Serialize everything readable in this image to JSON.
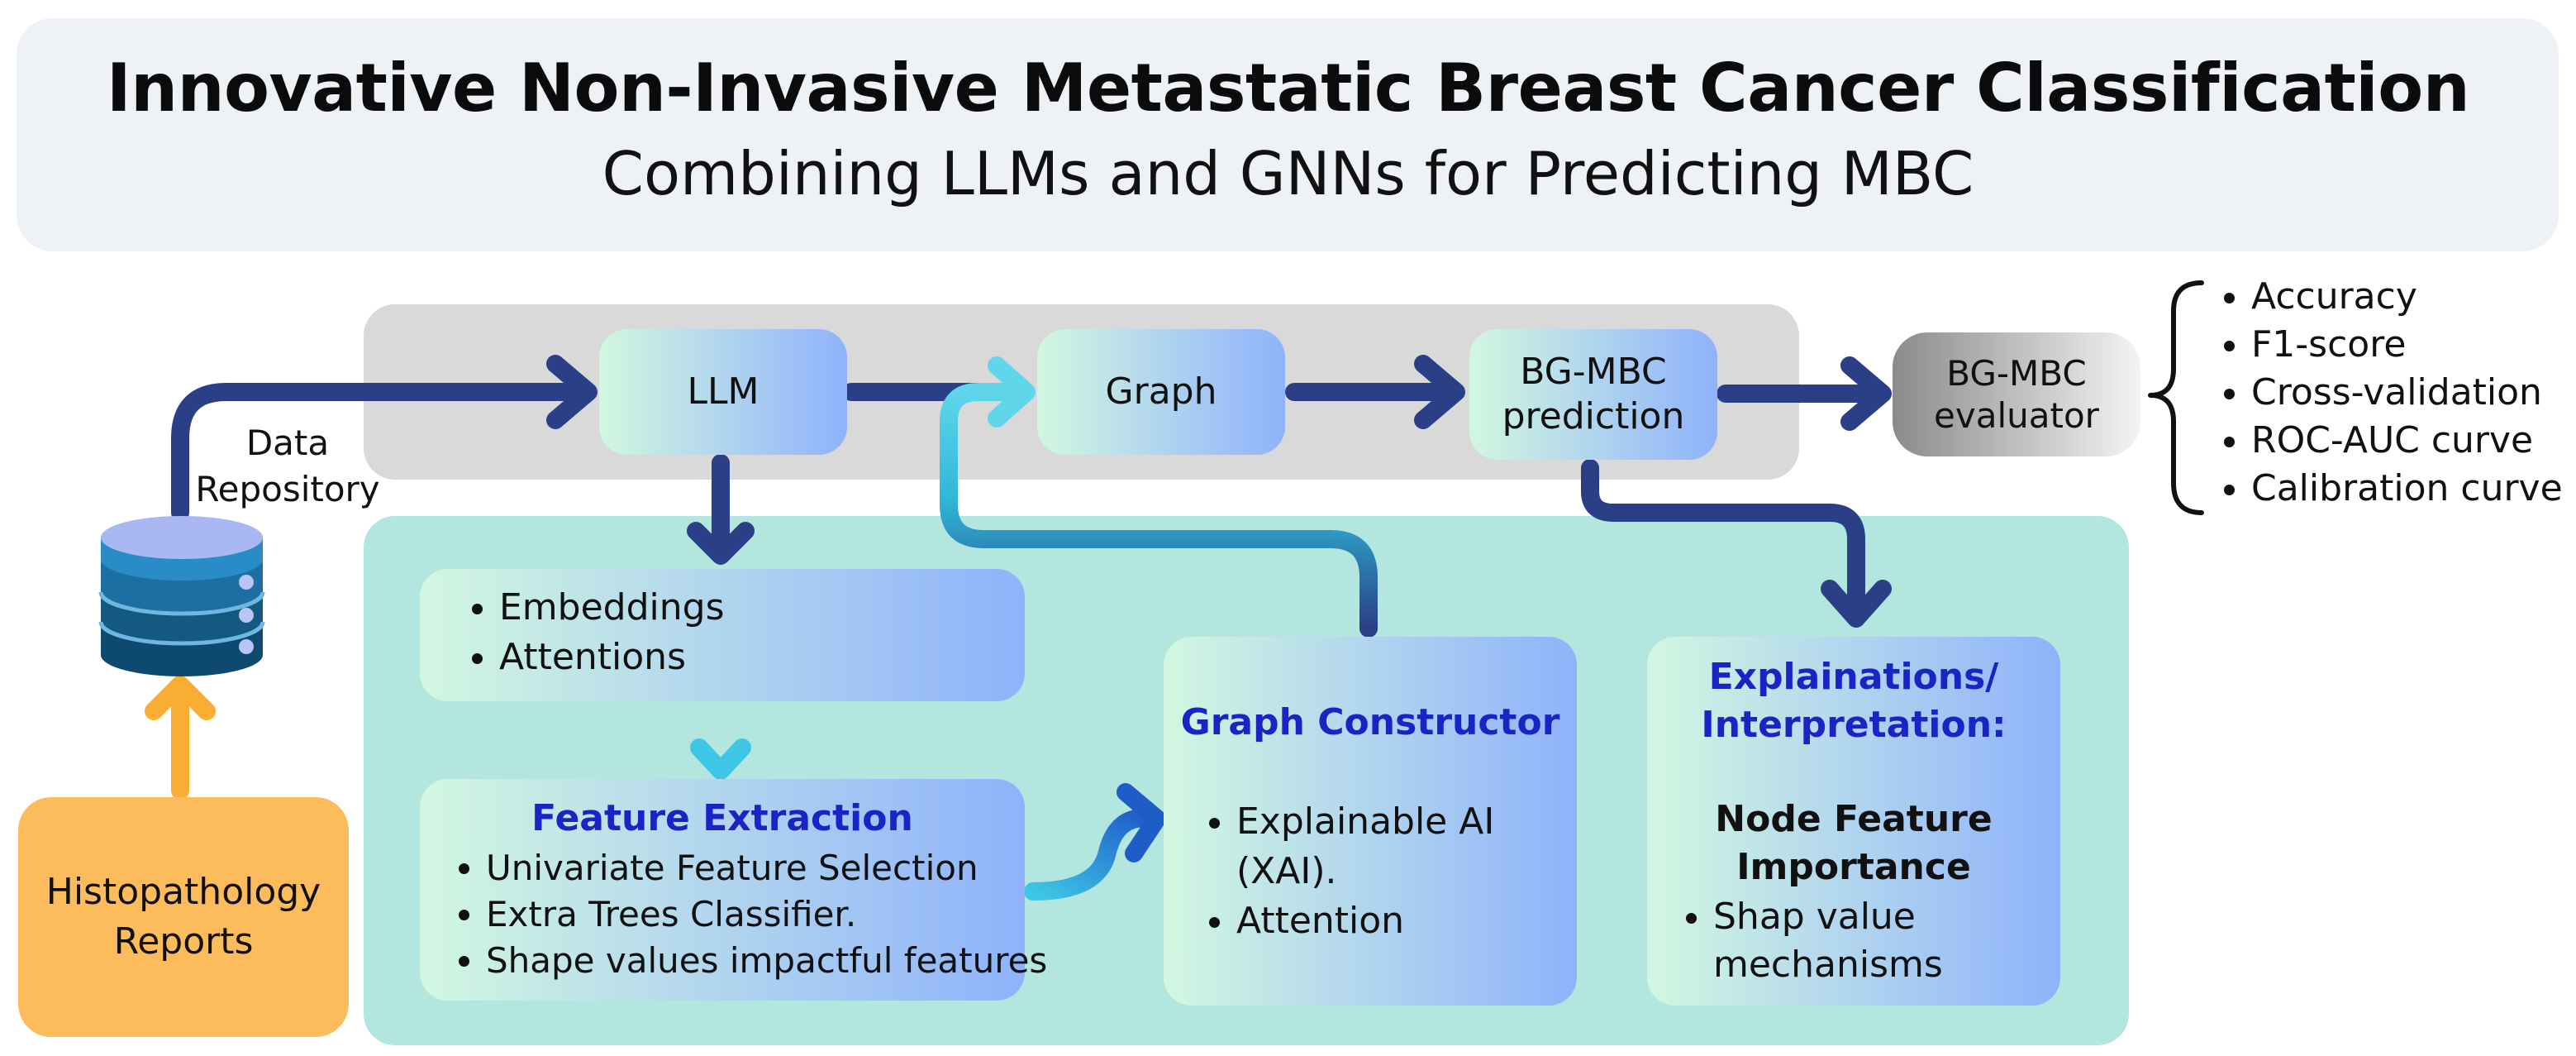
{
  "header": {
    "title": "Innovative Non-Invasive Metastatic Breast Cancer Classification",
    "subtitle": "Combining LLMs and GNNs for Predicting MBC"
  },
  "nodes": {
    "llm": "LLM",
    "graph": "Graph",
    "prediction": "BG-MBC prediction",
    "evaluator": "BG-MBC evaluator"
  },
  "data_repository": {
    "label": "Data Repository"
  },
  "histopathology": {
    "label": "Histopathology Reports"
  },
  "embeddings_box": {
    "items": [
      "Embeddings",
      "Attentions"
    ]
  },
  "feature_extraction": {
    "title": "Feature Extraction",
    "items": [
      "Univariate Feature Selection",
      "Extra Trees Classifier.",
      "Shape values impactful features"
    ]
  },
  "graph_constructor": {
    "title": "Graph Constructor",
    "items": [
      "Explainable AI (XAI).",
      "Attention"
    ]
  },
  "explanations": {
    "title": "Explainations/ Interpretation:",
    "subtitle": "Node Feature Importance",
    "items": [
      "Shap value mechanisms"
    ]
  },
  "metrics": {
    "items": [
      "Accuracy",
      "F1-score",
      "Cross-validation",
      "ROC-AUC curve",
      "Calibration curve"
    ]
  },
  "colors": {
    "arrow_navy": "#2a3f86",
    "arrow_orange": "#f9ad33",
    "arrow_cyan": "#2fb8d8",
    "accent_blue": "#1a24c4",
    "header_bg": "#eef1f5",
    "band_gray": "#d9d9d9",
    "band_teal": "#b2e6de",
    "histo_orange": "#fcbc5c"
  }
}
